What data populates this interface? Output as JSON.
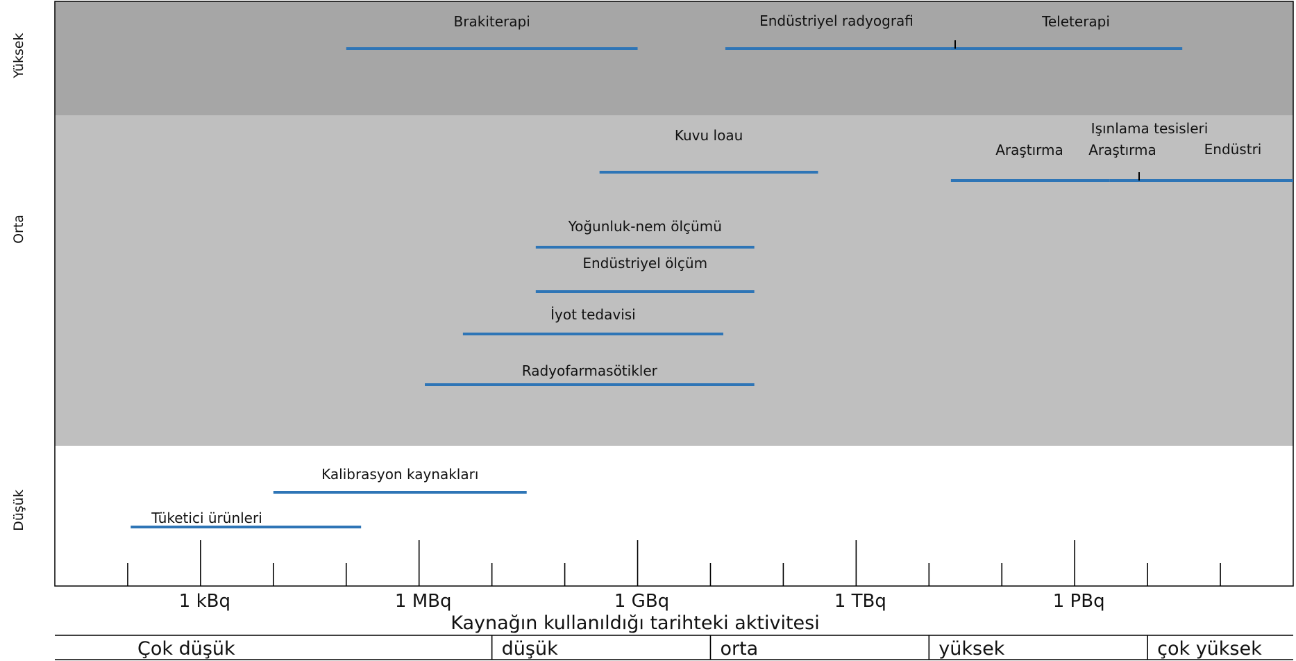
{
  "chart_data": {
    "type": "range-bar",
    "xscale": "log",
    "xunit": "Bq",
    "xlabel": "Kaynağın kullanıldığı tarihteki aktivitesi",
    "xlim": [
      10.0,
      1e+18
    ],
    "ticks_major": [
      {
        "value": 1000.0,
        "label": "1 kBq"
      },
      {
        "value": 1000000.0,
        "label": "1 MBq"
      },
      {
        "value": 1000000000.0,
        "label": "1 GBq"
      },
      {
        "value": 1000000000000.0,
        "label": "1 TBq"
      },
      {
        "value": 1000000000000000.0,
        "label": "1 PBq"
      }
    ],
    "bands": [
      {
        "id": "high",
        "label": "Yüksek",
        "color": "#a6a6a6"
      },
      {
        "id": "medium",
        "label": "Orta",
        "color": "#bfbfbf"
      },
      {
        "id": "low",
        "label": "Düşük",
        "color": "#ffffff"
      }
    ],
    "bars_color": "#2e75b6",
    "bars": [
      {
        "band": "high",
        "label": "Brakiterapi",
        "from": 100000.0,
        "to": 1000000000.0
      },
      {
        "band": "high",
        "label": "Endüstriyel  radyografi",
        "from": 16000000000.0,
        "to": 20000000000000.0,
        "split": true
      },
      {
        "band": "high",
        "label": "Teleterapi",
        "from": 20000000000000.0,
        "to": 3e+16,
        "split": true
      },
      {
        "band": "medium",
        "label": "Kuvu loau",
        "from": 300000000.0,
        "to": 300000000000.0
      },
      {
        "band": "medium",
        "label": "Araştırma",
        "from": 20000000000000.0,
        "to": 3000000000000000.0,
        "split": true
      },
      {
        "band": "medium",
        "label": "Araştırma",
        "from": 3000000000000000.0,
        "to": 1e+18,
        "split": true
      },
      {
        "band": "medium",
        "label": "Endüstri",
        "from": 3000000000000000.0,
        "to": 1e+18,
        "label_only": true
      },
      {
        "band": "medium",
        "label": "Yoğunluk-nem ölçümü",
        "from": 40000000.0,
        "to": 40000000000.0
      },
      {
        "band": "medium",
        "label": "Endüstriyel ölçüm",
        "from": 40000000.0,
        "to": 40000000000.0
      },
      {
        "band": "medium",
        "label": "İyot tedavisi",
        "from": 4000000.0,
        "to": 15000000000.0
      },
      {
        "band": "medium",
        "label": "Radyofarmasötikler",
        "from": 1200000.0,
        "to": 40000000000.0
      },
      {
        "band": "low",
        "label": "Kalibrasyon kaynakları",
        "from": 10000.0,
        "to": 30000000.0
      },
      {
        "band": "low",
        "label": "Tüketici ürünleri",
        "from": 110.0,
        "to": 160000.0
      }
    ],
    "group_labels": [
      {
        "band": "medium",
        "label": "Işınlama tesisleri"
      }
    ],
    "activity_classes": [
      {
        "label": "Çok düşük",
        "from": 10.0,
        "to": 10000000.0
      },
      {
        "label": "düşük",
        "from": 10000000.0,
        "to": 10000000000.0
      },
      {
        "label": "orta",
        "from": 10000000000.0,
        "to": 10000000000000.0
      },
      {
        "label": "yüksek",
        "from": 10000000000000.0,
        "to": 1e+16
      },
      {
        "label": "çok yüksek",
        "from": 1e+16,
        "to": 1e+18
      }
    ]
  }
}
